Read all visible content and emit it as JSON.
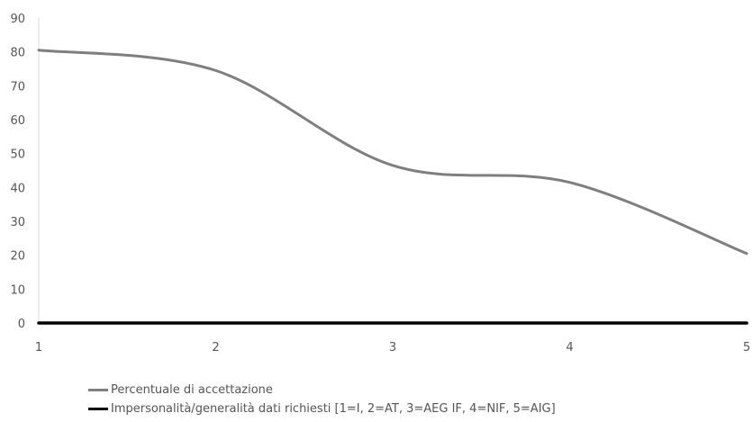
{
  "chart_data": {
    "type": "line",
    "x": [
      1,
      2,
      3,
      4,
      5
    ],
    "series": [
      {
        "name": "Percentuale di accettazione",
        "values": [
          80.5,
          74.5,
          46.5,
          41.5,
          20.5
        ],
        "color": "#7f7f7f"
      },
      {
        "name": "Impersonalità/generalità dati richiesti [1=I, 2=AT, 3=AEG IF, 4=NIF, 5=AIG]",
        "values": [
          0,
          0,
          0,
          0,
          0
        ],
        "color": "#000000"
      }
    ],
    "xticks": [
      "1",
      "2",
      "3",
      "4",
      "5"
    ],
    "yticks": [
      "0",
      "10",
      "20",
      "30",
      "40",
      "50",
      "60",
      "70",
      "80",
      "90"
    ],
    "ylim": [
      0,
      90
    ],
    "xlim": [
      1,
      5
    ],
    "grid": false,
    "smooth": true,
    "legend_position": "bottom-left"
  }
}
